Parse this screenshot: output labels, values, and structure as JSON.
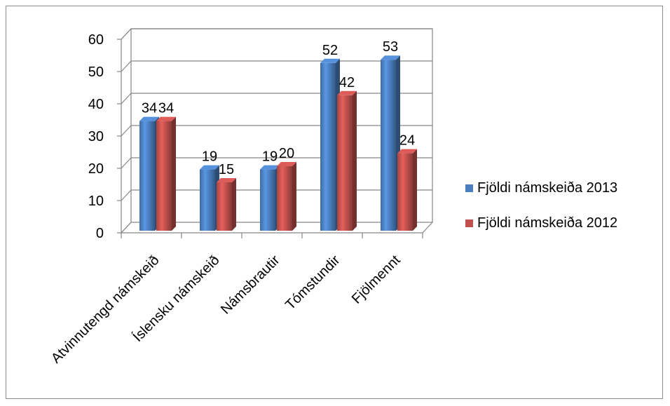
{
  "chart_data": {
    "type": "bar",
    "style": "3d-clustered-column",
    "categories": [
      "Atvinnutengd námskeið",
      "Íslensku námskeið",
      "Námsbrautir",
      "Tómstundir",
      "Fjölmennt"
    ],
    "series": [
      {
        "name": "Fjöldi námskeiða  2013",
        "values": [
          34,
          19,
          19,
          52,
          53
        ],
        "color": "#4a7ebf"
      },
      {
        "name": "Fjöldi námskeiða 2012",
        "values": [
          34,
          15,
          20,
          42,
          24
        ],
        "color": "#c0504d"
      }
    ],
    "y_ticks": [
      "0",
      "10",
      "20",
      "30",
      "40",
      "50",
      "60"
    ],
    "ylim": [
      0,
      60
    ],
    "grid": true,
    "legend_position": "right"
  }
}
